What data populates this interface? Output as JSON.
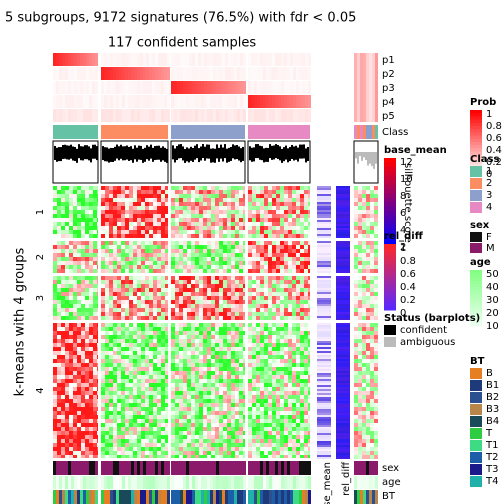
{
  "title": "5 subgroups, 9172 signatures (76.5%) with fdr < 0.05",
  "subtitle": "117 confident samples",
  "row_title": "k-means with 4 groups",
  "row_groups": [
    "1",
    "2",
    "3",
    "4"
  ],
  "top_annotations": [
    "p1",
    "p2",
    "p3",
    "p4",
    "p5",
    "Class"
  ],
  "silhouette_label": "silhouette score",
  "bottom_annotations": [
    "sex",
    "age",
    "BT"
  ],
  "columns": [
    "base_mean",
    "rel_diff"
  ],
  "legends": {
    "prob": {
      "title": "Prob",
      "labels": [
        "1",
        "0.8",
        "0.6",
        "0.4",
        "0.2",
        "0"
      ]
    },
    "class": {
      "title": "Class",
      "labels": [
        "1",
        "2",
        "3",
        "4"
      ]
    },
    "sex": {
      "title": "sex",
      "labels": [
        "F",
        "M"
      ]
    },
    "age": {
      "title": "age",
      "labels": [
        "50",
        "40",
        "30",
        "20",
        "10"
      ]
    },
    "bt": {
      "title": "BT",
      "labels": [
        "B",
        "B1",
        "B2",
        "B3",
        "B4",
        "T",
        "T1",
        "T2",
        "T3",
        "T4"
      ]
    },
    "base_mean": {
      "title": "base_mean",
      "labels": [
        "12",
        "10",
        "8",
        "6",
        "4",
        "2"
      ]
    },
    "rel_diff": {
      "title": "rel_diff",
      "labels": [
        "1",
        "0.8",
        "0.6",
        "0.4",
        "0.2",
        "0"
      ]
    },
    "status": {
      "title": "Status (barplots)",
      "labels": [
        "confident",
        "ambiguous"
      ]
    }
  }
}
